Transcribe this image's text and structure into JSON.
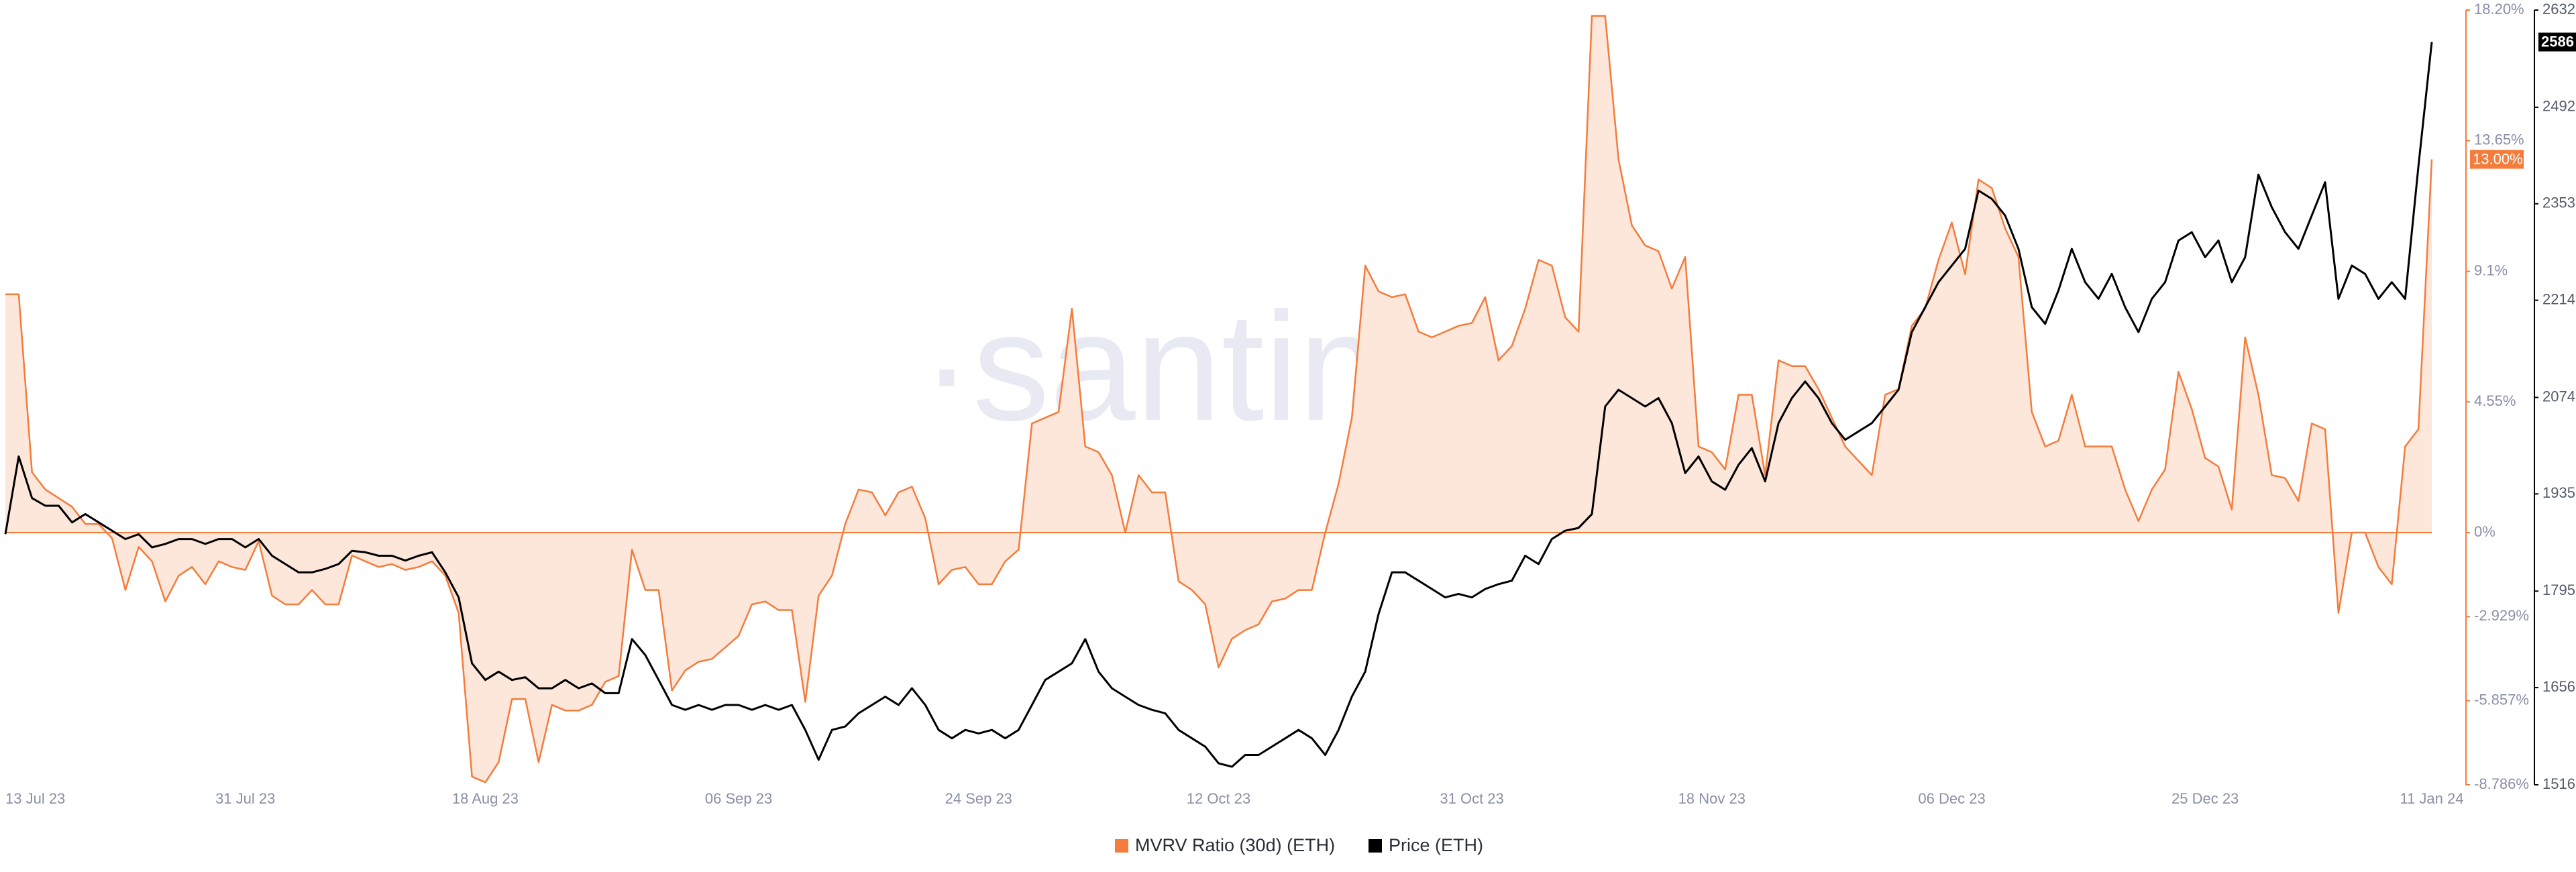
{
  "chart_data": {
    "type": "line",
    "watermark": "·santiment",
    "categories": [
      "13 Jul 23",
      null,
      null,
      null,
      null,
      null,
      null,
      null,
      null,
      null,
      null,
      null,
      null,
      null,
      null,
      null,
      null,
      null,
      "31 Jul 23",
      null,
      null,
      null,
      null,
      null,
      null,
      null,
      null,
      null,
      null,
      null,
      null,
      null,
      null,
      null,
      null,
      null,
      "18 Aug 23",
      null,
      null,
      null,
      null,
      null,
      null,
      null,
      null,
      null,
      null,
      null,
      null,
      null,
      null,
      null,
      null,
      null,
      null,
      "06 Sep 23",
      null,
      null,
      null,
      null,
      null,
      null,
      null,
      null,
      null,
      null,
      null,
      null,
      null,
      null,
      null,
      null,
      null,
      "24 Sep 23",
      null,
      null,
      null,
      null,
      null,
      null,
      null,
      null,
      null,
      null,
      null,
      null,
      null,
      null,
      null,
      null,
      null,
      "12 Oct 23",
      null,
      null,
      null,
      null,
      null,
      null,
      null,
      null,
      null,
      null,
      null,
      null,
      null,
      null,
      null,
      null,
      null,
      null,
      "31 Oct 23",
      null,
      null,
      null,
      null,
      null,
      null,
      null,
      null,
      null,
      null,
      null,
      null,
      null,
      null,
      null,
      null,
      null,
      "18 Nov 23",
      null,
      null,
      null,
      null,
      null,
      null,
      null,
      null,
      null,
      null,
      null,
      null,
      null,
      null,
      null,
      null,
      null,
      "06 Dec 23",
      null,
      null,
      null,
      null,
      null,
      null,
      null,
      null,
      null,
      null,
      null,
      null,
      null,
      null,
      null,
      null,
      null,
      null,
      "25 Dec 23",
      null,
      null,
      null,
      null,
      null,
      null,
      null,
      null,
      null,
      null,
      null,
      null,
      null,
      null,
      null,
      null,
      "11 Jan 24"
    ],
    "series": [
      {
        "name": "MVRV Ratio (30d) (ETH)",
        "color": "#f47c3c",
        "fill": "#fde6da",
        "axis": "y2",
        "end_label": "13.00%",
        "values": [
          8.3,
          8.3,
          2.1,
          1.5,
          1.2,
          0.9,
          0.3,
          0.3,
          -0.2,
          -2.0,
          -0.5,
          -1.0,
          -2.4,
          -1.5,
          -1.2,
          -1.8,
          -1.0,
          -1.2,
          -1.3,
          -0.3,
          -2.2,
          -2.5,
          -2.5,
          -2.0,
          -2.5,
          -2.5,
          -0.8,
          -1.0,
          -1.2,
          -1.1,
          -1.3,
          -1.2,
          -1.0,
          -1.5,
          -2.8,
          -8.5,
          -8.7,
          -8.0,
          -5.8,
          -5.8,
          -8.0,
          -6.0,
          -6.2,
          -6.2,
          -6.0,
          -5.2,
          -5.0,
          -0.6,
          -2.0,
          -2.0,
          -5.5,
          -4.8,
          -4.5,
          -4.4,
          -4.0,
          -3.6,
          -2.5,
          -2.4,
          -2.7,
          -2.7,
          -5.9,
          -2.2,
          -1.5,
          0.3,
          1.5,
          1.4,
          0.6,
          1.4,
          1.6,
          0.5,
          -1.8,
          -1.3,
          -1.2,
          -1.8,
          -1.8,
          -1.0,
          -0.6,
          3.8,
          4.0,
          4.2,
          7.8,
          3.0,
          2.8,
          2.0,
          0.0,
          2.0,
          1.4,
          1.4,
          -1.7,
          -2.0,
          -2.5,
          -4.7,
          -3.7,
          -3.4,
          -3.2,
          -2.4,
          -2.3,
          -2.0,
          -2.0,
          0.0,
          1.7,
          4.0,
          9.3,
          8.4,
          8.2,
          8.3,
          7.0,
          6.8,
          7.0,
          7.2,
          7.3,
          8.2,
          6.0,
          6.5,
          7.8,
          9.5,
          9.3,
          7.5,
          7.0,
          18.0,
          18.0,
          13.0,
          10.7,
          10.0,
          9.8,
          8.5,
          9.6,
          3.0,
          2.8,
          2.2,
          4.8,
          4.8,
          2.0,
          6.0,
          5.8,
          5.8,
          5.0,
          4.0,
          3.0,
          2.5,
          2.0,
          4.8,
          5.0,
          7.2,
          7.8,
          9.5,
          10.8,
          9.0,
          12.3,
          12.0,
          10.6,
          9.6,
          4.2,
          3.0,
          3.2,
          4.8,
          3.0,
          3.0,
          3.0,
          1.5,
          0.4,
          1.5,
          2.2,
          5.6,
          4.3,
          2.6,
          2.3,
          0.8,
          6.8,
          4.8,
          2.0,
          1.9,
          1.1,
          3.8,
          3.6,
          -2.8,
          0.0,
          0.0,
          -1.2,
          -1.8,
          3.0,
          3.6,
          13.0
        ]
      },
      {
        "name": "Price (ETH)",
        "color": "#000000",
        "end_label": "2586",
        "values": [
          1877,
          1989,
          1929,
          1918,
          1918,
          1894,
          1906,
          1894,
          1882,
          1870,
          1877,
          1858,
          1863,
          1870,
          1870,
          1863,
          1870,
          1870,
          1858,
          1870,
          1846,
          1834,
          1822,
          1822,
          1827,
          1834,
          1853,
          1851,
          1846,
          1846,
          1839,
          1846,
          1851,
          1822,
          1786,
          1691,
          1667,
          1679,
          1667,
          1671,
          1655,
          1655,
          1667,
          1655,
          1662,
          1648,
          1648,
          1726,
          1703,
          1667,
          1631,
          1624,
          1631,
          1624,
          1631,
          1631,
          1624,
          1631,
          1624,
          1631,
          1595,
          1552,
          1595,
          1600,
          1619,
          1631,
          1643,
          1631,
          1655,
          1631,
          1595,
          1583,
          1595,
          1590,
          1595,
          1583,
          1595,
          1631,
          1667,
          1679,
          1691,
          1726,
          1679,
          1655,
          1643,
          1631,
          1624,
          1619,
          1595,
          1583,
          1571,
          1547,
          1542,
          1559,
          1559,
          1571,
          1583,
          1595,
          1583,
          1559,
          1595,
          1643,
          1679,
          1762,
          1822,
          1822,
          1810,
          1798,
          1786,
          1791,
          1786,
          1798,
          1805,
          1810,
          1846,
          1834,
          1870,
          1882,
          1886,
          1906,
          2061,
          2085,
          2073,
          2061,
          2073,
          2037,
          1965,
          1989,
          1953,
          1941,
          1977,
          2001,
          1953,
          2037,
          2073,
          2097,
          2073,
          2037,
          2013,
          2025,
          2037,
          2061,
          2085,
          2168,
          2204,
          2240,
          2264,
          2288,
          2372,
          2360,
          2336,
          2288,
          2204,
          2180,
          2228,
          2288,
          2240,
          2216,
          2252,
          2204,
          2168,
          2216,
          2240,
          2300,
          2312,
          2276,
          2300,
          2240,
          2276,
          2395,
          2348,
          2312,
          2288,
          2336,
          2384,
          2216,
          2264,
          2252,
          2216,
          2240,
          2216,
          2407,
          2586
        ]
      }
    ],
    "ylim": [
      1516,
      2632
    ],
    "yticks": [
      1516,
      1656,
      1795,
      1935,
      2074,
      2214,
      2353,
      2492,
      2632
    ],
    "y2lim": [
      -8.786,
      18.2
    ],
    "y2ticks": [
      {
        "value": -8.786,
        "label": "-8.786%"
      },
      {
        "value": -5.857,
        "label": "-5.857%"
      },
      {
        "value": -2.929,
        "label": "-2.929%"
      },
      {
        "value": 0,
        "label": "0%"
      },
      {
        "value": 4.55,
        "label": "4.55%"
      },
      {
        "value": 9.1,
        "label": "9.1%"
      },
      {
        "value": 13.65,
        "label": "13.65%"
      },
      {
        "value": 18.2,
        "label": "18.20%"
      }
    ],
    "legend": "bottom"
  }
}
